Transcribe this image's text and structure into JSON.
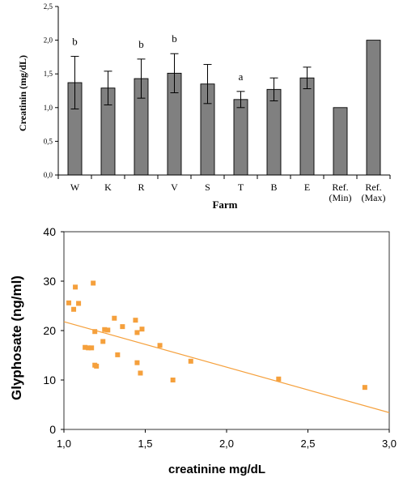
{
  "chart_data": [
    {
      "type": "bar",
      "categories": [
        "W",
        "K",
        "R",
        "V",
        "S",
        "T",
        "B",
        "E",
        "Ref.\n(Min)",
        "Ref.\n(Max)"
      ],
      "values": [
        1.37,
        1.29,
        1.43,
        1.51,
        1.35,
        1.12,
        1.27,
        1.44,
        1.0,
        2.0
      ],
      "error": [
        0.39,
        0.25,
        0.29,
        0.29,
        0.29,
        0.12,
        0.17,
        0.16,
        null,
        null
      ],
      "annotations": [
        "b",
        "",
        "b",
        "b",
        "",
        "a",
        "",
        "",
        "",
        ""
      ],
      "xlabel": "Farm",
      "ylabel": "Creatinin (mg/dL)",
      "ylim": [
        0,
        2.5
      ],
      "yticks": [
        "0,0",
        "0,5",
        "1,0",
        "1,5",
        "2,0",
        "2,5"
      ],
      "bar_color": "#808080"
    },
    {
      "type": "scatter",
      "xlabel": "creatinine mg/dL",
      "ylabel": "Glyphosate (ng/ml)",
      "xlim": [
        1.0,
        3.0
      ],
      "ylim": [
        0,
        40
      ],
      "xticks": [
        "1,0",
        "1,5",
        "2,0",
        "2,5",
        "3,0"
      ],
      "yticks": [
        "0",
        "10",
        "20",
        "30",
        "40"
      ],
      "marker_color": "#F5A03C",
      "trendline": {
        "x": [
          1.0,
          3.0
        ],
        "y": [
          21.8,
          3.4
        ],
        "color": "#F5A03C"
      },
      "points": [
        {
          "x": 1.03,
          "y": 25.6
        },
        {
          "x": 1.06,
          "y": 24.3
        },
        {
          "x": 1.07,
          "y": 28.8
        },
        {
          "x": 1.09,
          "y": 25.5
        },
        {
          "x": 1.13,
          "y": 16.6
        },
        {
          "x": 1.15,
          "y": 16.5
        },
        {
          "x": 1.17,
          "y": 16.5
        },
        {
          "x": 1.18,
          "y": 29.6
        },
        {
          "x": 1.19,
          "y": 19.8
        },
        {
          "x": 1.19,
          "y": 13.0
        },
        {
          "x": 1.2,
          "y": 12.8
        },
        {
          "x": 1.24,
          "y": 17.8
        },
        {
          "x": 1.25,
          "y": 20.2
        },
        {
          "x": 1.27,
          "y": 20.1
        },
        {
          "x": 1.31,
          "y": 22.5
        },
        {
          "x": 1.33,
          "y": 15.1
        },
        {
          "x": 1.36,
          "y": 20.8
        },
        {
          "x": 1.44,
          "y": 22.1
        },
        {
          "x": 1.45,
          "y": 19.6
        },
        {
          "x": 1.45,
          "y": 13.5
        },
        {
          "x": 1.47,
          "y": 11.4
        },
        {
          "x": 1.48,
          "y": 20.3
        },
        {
          "x": 1.59,
          "y": 17.0
        },
        {
          "x": 1.67,
          "y": 10.0
        },
        {
          "x": 1.78,
          "y": 13.8
        },
        {
          "x": 2.32,
          "y": 10.2
        },
        {
          "x": 2.85,
          "y": 8.5
        }
      ]
    }
  ]
}
